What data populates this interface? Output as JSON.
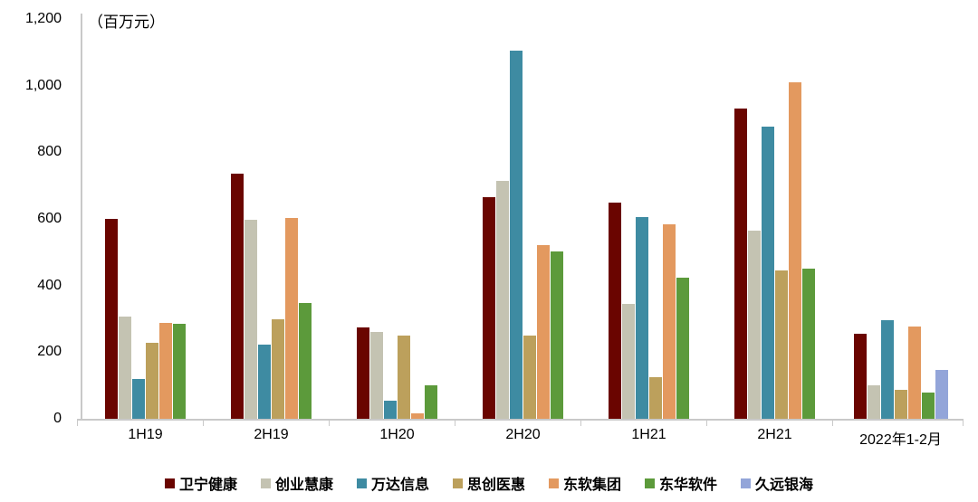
{
  "chart_data": {
    "type": "bar",
    "title": "",
    "unit_label": "（百万元）",
    "xlabel": "",
    "ylabel": "",
    "ylim": [
      0,
      1200
    ],
    "yticks": [
      0,
      200,
      400,
      600,
      800,
      1000,
      1200
    ],
    "ytick_labels": [
      "0",
      "200",
      "400",
      "600",
      "800",
      "1,000",
      "1,200"
    ],
    "grid": false,
    "legend_position": "bottom",
    "axis_color": "#c9c9c9",
    "text_color": "#000000",
    "categories": [
      "1H19",
      "2H19",
      "1H20",
      "2H20",
      "1H21",
      "2H21",
      "2022年1-2月"
    ],
    "series": [
      {
        "name": "卫宁健康",
        "color": "#6a0500",
        "values": [
          600,
          735,
          275,
          665,
          650,
          930,
          255
        ]
      },
      {
        "name": "创业慧康",
        "color": "#c4c3b2",
        "values": [
          308,
          597,
          262,
          715,
          345,
          565,
          100
        ]
      },
      {
        "name": "万达信息",
        "color": "#3e8ba2",
        "values": [
          120,
          224,
          55,
          1105,
          605,
          876,
          295
        ]
      },
      {
        "name": "思创医惠",
        "color": "#bca05c",
        "values": [
          229,
          300,
          250,
          249,
          125,
          444,
          88
        ]
      },
      {
        "name": "东软集团",
        "color": "#e3995f",
        "values": [
          289,
          604,
          15,
          520,
          585,
          1010,
          277
        ]
      },
      {
        "name": "东华软件",
        "color": "#5c9a3b",
        "values": [
          286,
          347,
          100,
          501,
          424,
          450,
          80
        ]
      },
      {
        "name": "久远银海",
        "color": "#93a5d9",
        "values": [
          null,
          null,
          null,
          null,
          null,
          null,
          146
        ]
      }
    ]
  }
}
